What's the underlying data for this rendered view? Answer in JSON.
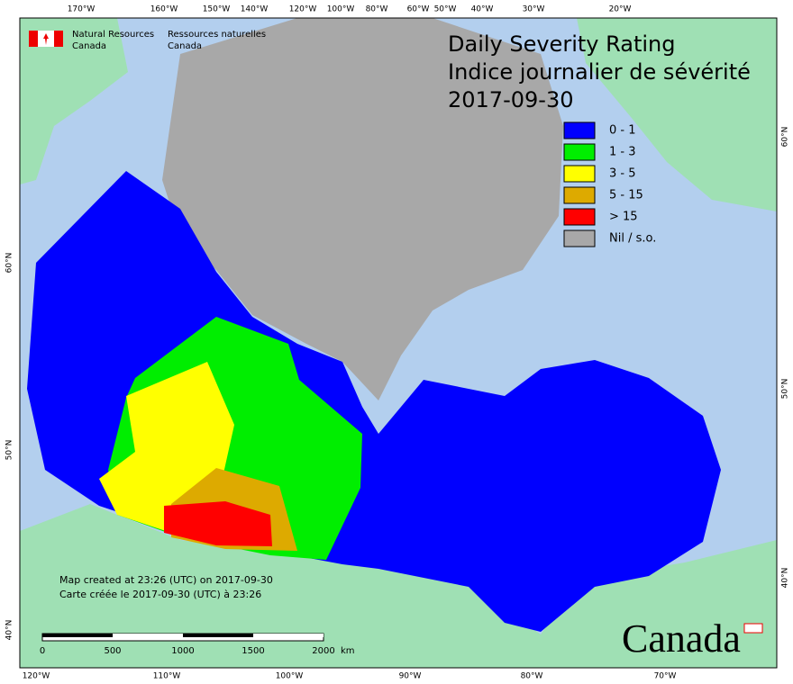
{
  "header": {
    "agency_en": [
      "Natural Resources",
      "Canada"
    ],
    "agency_fr": [
      "Ressources naturelles",
      "Canada"
    ]
  },
  "title": [
    "Daily Severity Rating",
    "Indice journalier de sévérité",
    "2017-09-30"
  ],
  "legend": [
    {
      "label": "0 - 1",
      "color": "#0000ff"
    },
    {
      "label": "1 - 3",
      "color": "#00ee00"
    },
    {
      "label": "3 - 5",
      "color": "#ffff00"
    },
    {
      "label": "5 - 15",
      "color": "#ddaa00"
    },
    {
      "label": "> 15",
      "color": "#ff0000"
    },
    {
      "label": "Nil / s.o.",
      "color": "#a8a8a8"
    }
  ],
  "graticule": {
    "top": [
      "170°W",
      "160°W",
      "150°W",
      "140°W",
      "120°W",
      "100°W",
      "80°W",
      "60°W",
      "50°W",
      "40°W",
      "30°W",
      "20°W"
    ],
    "bottom": [
      "120°W",
      "110°W",
      "100°W",
      "90°W",
      "80°W",
      "70°W"
    ],
    "left": [
      "60°N",
      "50°N",
      "40°N"
    ],
    "right": [
      "60°N",
      "50°N",
      "40°N"
    ]
  },
  "notes": [
    "Map created at 23:26 (UTC) on 2017-09-30",
    "Carte créée le 2017-09-30 (UTC) à 23:26"
  ],
  "scale_bar": {
    "ticks": [
      "0",
      "500",
      "1000",
      "1500",
      "2000"
    ],
    "unit": "km"
  },
  "wordmark": "Canada"
}
